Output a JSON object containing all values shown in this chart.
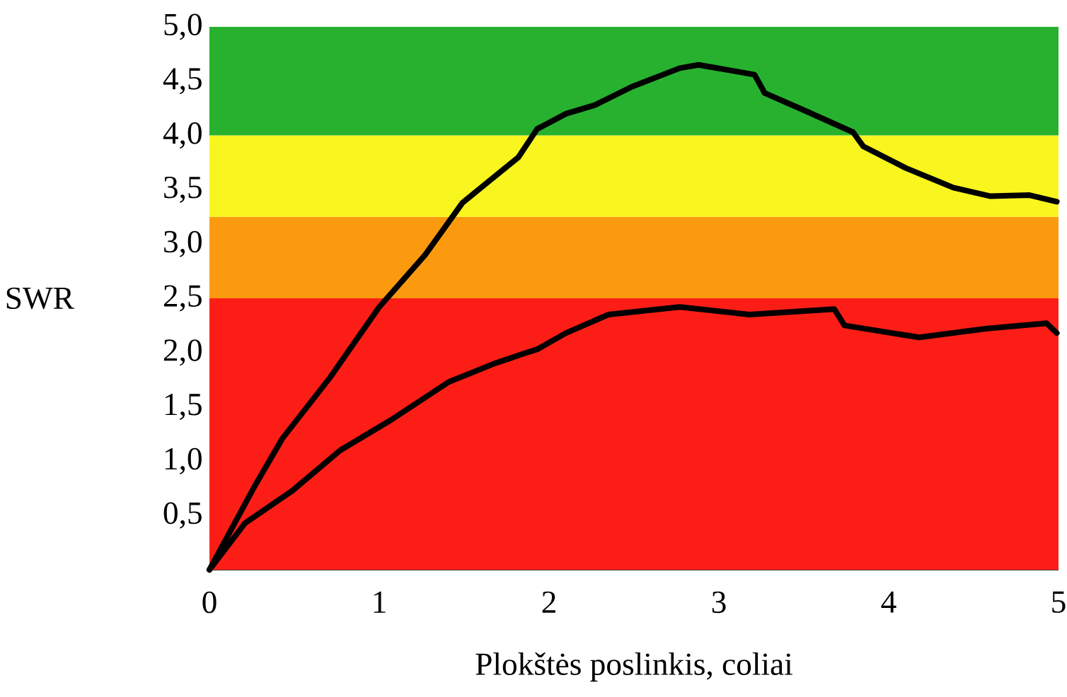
{
  "chart_data": {
    "type": "line",
    "xlabel": "Plokštės poslinkis, coliai",
    "ylabel": "SWR",
    "x": [
      0,
      0.27,
      0.43,
      0.71,
      1.0,
      1.27,
      1.49,
      1.82,
      1.93,
      2.1,
      2.27,
      2.49,
      2.77,
      2.88,
      3.21,
      3.27,
      3.49,
      3.79,
      3.85,
      4.1,
      4.38,
      4.6,
      4.83,
      4.99
    ],
    "series": [
      {
        "color": "#000000",
        "values": [
          0,
          0.78,
          1.21,
          1.77,
          2.42,
          2.9,
          3.38,
          3.8,
          4.06,
          4.2,
          4.28,
          4.45,
          4.62,
          4.65,
          4.56,
          4.39,
          4.24,
          4.03,
          3.9,
          3.7,
          3.52,
          3.44,
          3.45,
          3.39
        ]
      },
      {
        "color": "#000000",
        "x": [
          0,
          0.21,
          0.49,
          0.77,
          1.07,
          1.41,
          1.68,
          1.85,
          1.93,
          2.1,
          2.35,
          2.77,
          3.18,
          3.68,
          3.74,
          4.18,
          4.57,
          4.93,
          4.99
        ],
        "values": [
          0,
          0.43,
          0.73,
          1.1,
          1.38,
          1.73,
          1.9,
          1.99,
          2.03,
          2.18,
          2.35,
          2.42,
          2.35,
          2.4,
          2.25,
          2.14,
          2.22,
          2.27,
          2.18
        ]
      }
    ],
    "bands": [
      {
        "axis": "y",
        "from": 0,
        "to": 2.5,
        "color": "#fc1e16"
      },
      {
        "axis": "y",
        "from": 2.5,
        "to": 3.25,
        "color": "#fb9a0f"
      },
      {
        "axis": "y",
        "from": 3.25,
        "to": 4.0,
        "color": "#f9f51f"
      },
      {
        "axis": "y",
        "from": 4.0,
        "to": 5.0,
        "color": "#27b12f"
      }
    ],
    "xlim": [
      0,
      5
    ],
    "ylim": [
      0,
      5
    ],
    "xticks": [
      0,
      1,
      2,
      3,
      4,
      5
    ],
    "yticks": [
      {
        "value": 0.5,
        "label": "0,5"
      },
      {
        "value": 1.0,
        "label": "1,0"
      },
      {
        "value": 1.5,
        "label": "1,5"
      },
      {
        "value": 2.0,
        "label": "2,0"
      },
      {
        "value": 2.5,
        "label": "2,5"
      },
      {
        "value": 3.0,
        "label": "3,0"
      },
      {
        "value": 3.5,
        "label": "3,5"
      },
      {
        "value": 4.0,
        "label": "4,0"
      },
      {
        "value": 4.5,
        "label": "4,5"
      },
      {
        "value": 5.0,
        "label": "5,0"
      }
    ],
    "grid": false,
    "marker": "none",
    "line_style": "solid"
  }
}
